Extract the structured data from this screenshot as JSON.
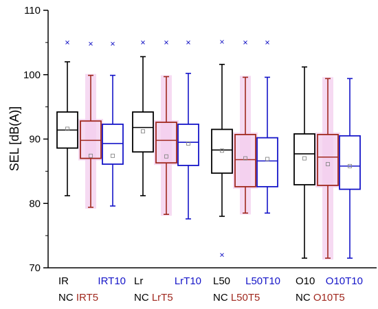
{
  "chart_data": {
    "type": "box",
    "title": "",
    "xlabel": "",
    "ylabel": "SEL [dB(A)]",
    "ylim": [
      70,
      110
    ],
    "y_ticks": [
      70,
      80,
      90,
      100,
      110
    ],
    "grid": false,
    "legend": "none",
    "series_styles": [
      {
        "color": "#000000",
        "highlight": false
      },
      {
        "color": "#a0281e",
        "highlight": true
      },
      {
        "color": "#1414c8",
        "highlight": false
      }
    ],
    "highlight_color": "#f3cdee",
    "groups": [
      {
        "labels": [
          {
            "prefix": "",
            "text": "IR",
            "color": "#000000",
            "row": 1,
            "pos": 0
          },
          {
            "prefix": "",
            "text": "IRT10",
            "color": "#1414c8",
            "row": 1,
            "pos": 2
          },
          {
            "prefix": "NC ",
            "text": "IRT5",
            "color": "#a0281e",
            "row": 2,
            "pos": 0
          }
        ],
        "boxes": [
          {
            "min": 81.2,
            "q1": 88.6,
            "median": 91.4,
            "q3": 94.2,
            "max": 102.0,
            "mean": 91.6,
            "outliers": [
              105.0
            ]
          },
          {
            "min": 79.4,
            "q1": 87.0,
            "median": 89.8,
            "q3": 92.8,
            "max": 99.9,
            "mean": 87.4,
            "outliers": [
              104.8
            ]
          },
          {
            "min": 79.6,
            "q1": 86.1,
            "median": 89.3,
            "q3": 92.3,
            "max": 99.9,
            "mean": 87.4,
            "outliers": [
              104.8
            ]
          }
        ]
      },
      {
        "labels": [
          {
            "prefix": "",
            "text": "Lr",
            "color": "#000000",
            "row": 1,
            "pos": 0
          },
          {
            "prefix": "",
            "text": "LrT10",
            "color": "#1414c8",
            "row": 1,
            "pos": 2
          },
          {
            "prefix": "NC ",
            "text": "LrT5",
            "color": "#a0281e",
            "row": 2,
            "pos": 0
          }
        ],
        "boxes": [
          {
            "min": 81.2,
            "q1": 88.0,
            "median": 91.8,
            "q3": 94.2,
            "max": 102.8,
            "mean": 91.2,
            "outliers": [
              105.0
            ]
          },
          {
            "min": 78.3,
            "q1": 86.3,
            "median": 89.8,
            "q3": 92.6,
            "max": 99.7,
            "mean": 87.3,
            "outliers": [
              105.0
            ]
          },
          {
            "min": 77.6,
            "q1": 85.9,
            "median": 89.5,
            "q3": 92.3,
            "max": 100.2,
            "mean": 89.3,
            "outliers": [
              105.0
            ]
          }
        ]
      },
      {
        "labels": [
          {
            "prefix": "",
            "text": "L50",
            "color": "#000000",
            "row": 1,
            "pos": 0
          },
          {
            "prefix": "",
            "text": "L50T10",
            "color": "#1414c8",
            "row": 1,
            "pos": 2
          },
          {
            "prefix": "NC ",
            "text": "L50T5",
            "color": "#a0281e",
            "row": 2,
            "pos": 0
          }
        ],
        "boxes": [
          {
            "min": 78.0,
            "q1": 84.7,
            "median": 88.3,
            "q3": 91.5,
            "max": 101.6,
            "mean": 88.2,
            "outliers": [
              105.1,
              72.0
            ]
          },
          {
            "min": 78.5,
            "q1": 82.6,
            "median": 86.8,
            "q3": 90.7,
            "max": 99.6,
            "mean": 87.0,
            "outliers": [
              105.0
            ]
          },
          {
            "min": 78.5,
            "q1": 82.6,
            "median": 86.6,
            "q3": 90.2,
            "max": 99.6,
            "mean": 86.9,
            "outliers": [
              105.0
            ]
          }
        ]
      },
      {
        "labels": [
          {
            "prefix": "",
            "text": "O10",
            "color": "#000000",
            "row": 1,
            "pos": 0
          },
          {
            "prefix": "",
            "text": "O10T10",
            "color": "#1414c8",
            "row": 1,
            "pos": 2
          },
          {
            "prefix": "NC ",
            "text": "O10T5",
            "color": "#a0281e",
            "row": 2,
            "pos": 0
          }
        ],
        "boxes": [
          {
            "min": 71.5,
            "q1": 82.9,
            "median": 87.7,
            "q3": 90.8,
            "max": 101.2,
            "mean": 87.0,
            "outliers": []
          },
          {
            "min": 71.5,
            "q1": 82.8,
            "median": 87.2,
            "q3": 90.7,
            "max": 99.4,
            "mean": 86.1,
            "outliers": []
          },
          {
            "min": 71.5,
            "q1": 82.2,
            "median": 85.8,
            "q3": 90.5,
            "max": 99.4,
            "mean": 85.8,
            "outliers": []
          }
        ]
      }
    ]
  }
}
